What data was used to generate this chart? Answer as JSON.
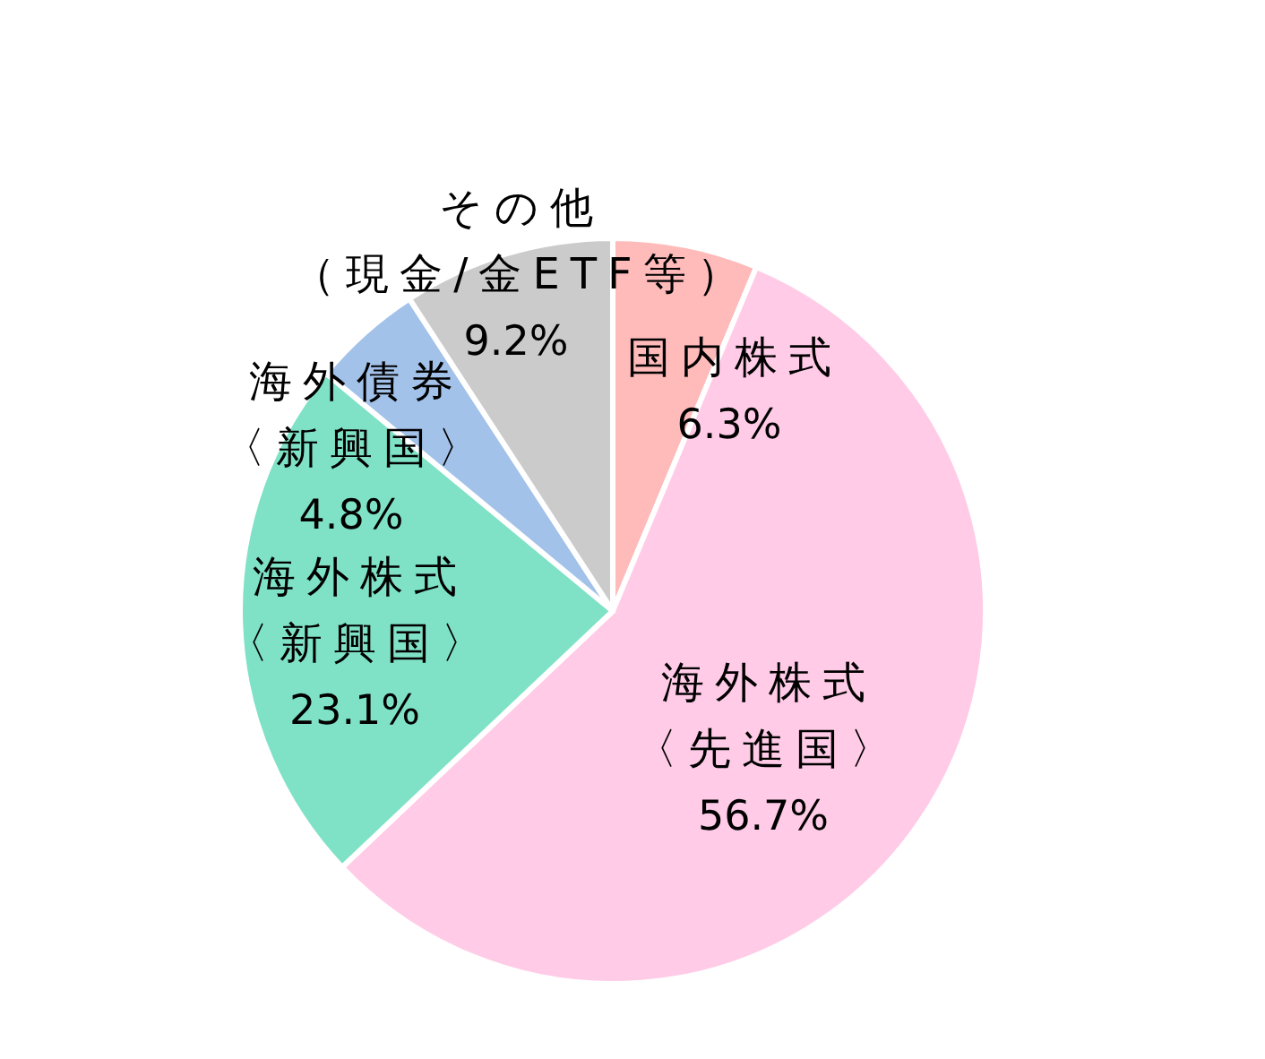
{
  "chart_data": {
    "type": "pie",
    "categories": [
      "国内株式",
      "海外株式〈先進国〉",
      "海外株式〈新興国〉",
      "海外債券〈新興国〉",
      "その他（現金/金ETF等）"
    ],
    "values": [
      6.3,
      56.7,
      23.1,
      4.8,
      9.2
    ],
    "colors": [
      "#ffbaba",
      "#ffcbe7",
      "#7fe2c6",
      "#a3c2ea",
      "#cbcbcb"
    ],
    "value_labels": [
      "6.3%",
      "56.7%",
      "23.1%",
      "4.8%",
      "9.2%"
    ]
  }
}
